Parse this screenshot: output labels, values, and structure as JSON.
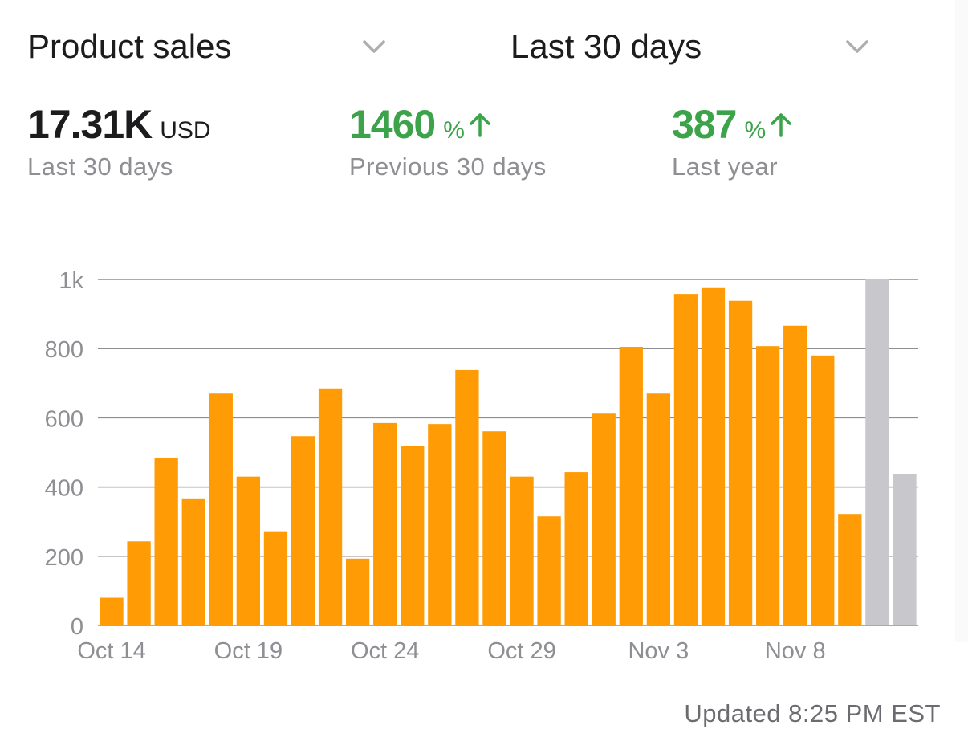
{
  "header": {
    "metric_selector": {
      "label": "Product sales",
      "icon": "chevron-down-icon"
    },
    "period_selector": {
      "label": "Last 30 days",
      "icon": "chevron-down-icon"
    }
  },
  "stats": {
    "total": {
      "value": "17.31K",
      "unit": "USD",
      "caption": "Last 30 days"
    },
    "previous": {
      "value": "1460",
      "unit": "%",
      "caption": "Previous 30 days",
      "trend": "up",
      "color": "#3ca34a"
    },
    "last_year": {
      "value": "387",
      "unit": "%",
      "caption": "Last year",
      "trend": "up",
      "color": "#3ca34a"
    }
  },
  "chart_data": {
    "type": "bar",
    "x_tick_labels": [
      "Oct 14",
      "Oct 19",
      "Oct 24",
      "Oct 29",
      "Nov 3",
      "Nov 8"
    ],
    "categories": [
      "Oct 14",
      "Oct 15",
      "Oct 16",
      "Oct 17",
      "Oct 18",
      "Oct 19",
      "Oct 20",
      "Oct 21",
      "Oct 22",
      "Oct 23",
      "Oct 24",
      "Oct 25",
      "Oct 26",
      "Oct 27",
      "Oct 28",
      "Oct 29",
      "Oct 30",
      "Oct 31",
      "Nov 1",
      "Nov 2",
      "Nov 3",
      "Nov 4",
      "Nov 5",
      "Nov 6",
      "Nov 7",
      "Nov 8",
      "Nov 9",
      "Nov 10",
      "Nov 11",
      "Nov 12"
    ],
    "values": [
      80,
      243,
      485,
      367,
      670,
      430,
      270,
      547,
      685,
      193,
      585,
      518,
      582,
      738,
      561,
      430,
      315,
      443,
      612,
      805,
      670,
      958,
      975,
      938,
      807,
      866,
      780,
      322,
      1000,
      438
    ],
    "bar_colors": [
      "#ff9b05",
      "#ff9b05",
      "#ff9b05",
      "#ff9b05",
      "#ff9b05",
      "#ff9b05",
      "#ff9b05",
      "#ff9b05",
      "#ff9b05",
      "#ff9b05",
      "#ff9b05",
      "#ff9b05",
      "#ff9b05",
      "#ff9b05",
      "#ff9b05",
      "#ff9b05",
      "#ff9b05",
      "#ff9b05",
      "#ff9b05",
      "#ff9b05",
      "#ff9b05",
      "#ff9b05",
      "#ff9b05",
      "#ff9b05",
      "#ff9b05",
      "#ff9b05",
      "#ff9b05",
      "#ff9b05",
      "#c7c7cc",
      "#c7c7cc"
    ],
    "y_ticks": [
      0,
      200,
      400,
      600,
      800,
      1000
    ],
    "y_tick_labels": [
      "0",
      "200",
      "400",
      "600",
      "800",
      "1k"
    ],
    "ylim": [
      0,
      1000
    ],
    "grid": true,
    "title": "",
    "xlabel": "",
    "ylabel": ""
  },
  "footer": {
    "updated": "Updated 8:25 PM EST"
  }
}
